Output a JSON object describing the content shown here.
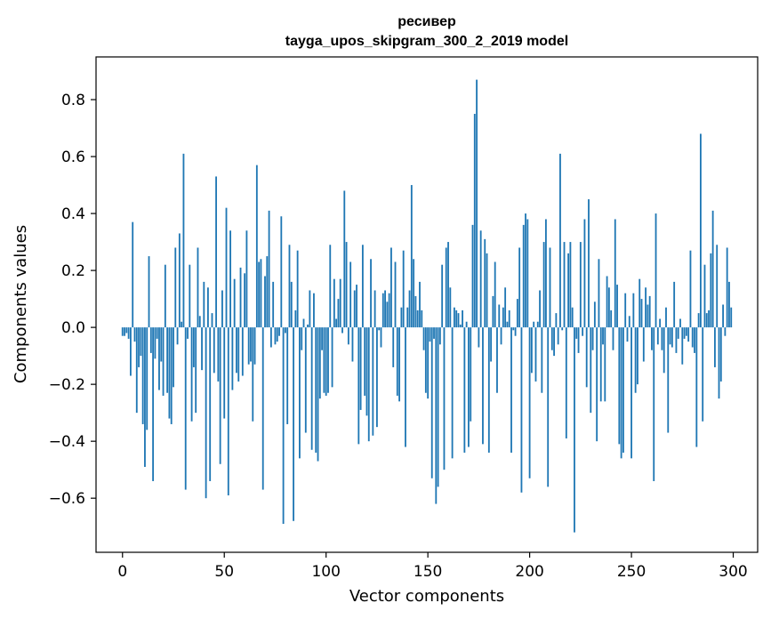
{
  "chart_data": {
    "type": "bar",
    "title": "ресивер",
    "subtitle": "tayga_upos_skipgram_300_2_2019 model",
    "xlabel": "Vector components",
    "ylabel": "Components values",
    "xlim": [
      -13,
      312
    ],
    "ylim": [
      -0.79,
      0.95
    ],
    "xticks": [
      0,
      50,
      100,
      150,
      200,
      250,
      300
    ],
    "xtick_labels": [
      "0",
      "50",
      "100",
      "150",
      "200",
      "250",
      "300"
    ],
    "yticks": [
      -0.6,
      -0.4,
      -0.2,
      0.0,
      0.2,
      0.4,
      0.6,
      0.8
    ],
    "ytick_labels": [
      "−0.6",
      "−0.4",
      "−0.2",
      "0.0",
      "0.2",
      "0.4",
      "0.6",
      "0.8"
    ],
    "bar_color": "#1f77b4",
    "grid": false,
    "x": [
      0,
      1,
      2,
      3,
      4,
      5,
      6,
      7,
      8,
      9,
      10,
      11,
      12,
      13,
      14,
      15,
      16,
      17,
      18,
      19,
      20,
      21,
      22,
      23,
      24,
      25,
      26,
      27,
      28,
      29,
      30,
      31,
      32,
      33,
      34,
      35,
      36,
      37,
      38,
      39,
      40,
      41,
      42,
      43,
      44,
      45,
      46,
      47,
      48,
      49,
      50,
      51,
      52,
      53,
      54,
      55,
      56,
      57,
      58,
      59,
      60,
      61,
      62,
      63,
      64,
      65,
      66,
      67,
      68,
      69,
      70,
      71,
      72,
      73,
      74,
      75,
      76,
      77,
      78,
      79,
      80,
      81,
      82,
      83,
      84,
      85,
      86,
      87,
      88,
      89,
      90,
      91,
      92,
      93,
      94,
      95,
      96,
      97,
      98,
      99,
      100,
      101,
      102,
      103,
      104,
      105,
      106,
      107,
      108,
      109,
      110,
      111,
      112,
      113,
      114,
      115,
      116,
      117,
      118,
      119,
      120,
      121,
      122,
      123,
      124,
      125,
      126,
      127,
      128,
      129,
      130,
      131,
      132,
      133,
      134,
      135,
      136,
      137,
      138,
      139,
      140,
      141,
      142,
      143,
      144,
      145,
      146,
      147,
      148,
      149,
      150,
      151,
      152,
      153,
      154,
      155,
      156,
      157,
      158,
      159,
      160,
      161,
      162,
      163,
      164,
      165,
      166,
      167,
      168,
      169,
      170,
      171,
      172,
      173,
      174,
      175,
      176,
      177,
      178,
      179,
      180,
      181,
      182,
      183,
      184,
      185,
      186,
      187,
      188,
      189,
      190,
      191,
      192,
      193,
      194,
      195,
      196,
      197,
      198,
      199,
      200,
      201,
      202,
      203,
      204,
      205,
      206,
      207,
      208,
      209,
      210,
      211,
      212,
      213,
      214,
      215,
      216,
      217,
      218,
      219,
      220,
      221,
      222,
      223,
      224,
      225,
      226,
      227,
      228,
      229,
      230,
      231,
      232,
      233,
      234,
      235,
      236,
      237,
      238,
      239,
      240,
      241,
      242,
      243,
      244,
      245,
      246,
      247,
      248,
      249,
      250,
      251,
      252,
      253,
      254,
      255,
      256,
      257,
      258,
      259,
      260,
      261,
      262,
      263,
      264,
      265,
      266,
      267,
      268,
      269,
      270,
      271,
      272,
      273,
      274,
      275,
      276,
      277,
      278,
      279,
      280,
      281,
      282,
      283,
      284,
      285,
      286,
      287,
      288,
      289,
      290,
      291,
      292,
      293,
      294,
      295,
      296,
      297,
      298,
      299
    ],
    "values": [
      -0.03,
      -0.03,
      -0.02,
      -0.04,
      -0.17,
      0.37,
      -0.05,
      -0.3,
      -0.14,
      -0.1,
      -0.34,
      -0.49,
      -0.36,
      0.25,
      -0.09,
      -0.54,
      -0.11,
      -0.04,
      -0.22,
      -0.12,
      -0.24,
      0.22,
      -0.23,
      -0.32,
      -0.34,
      -0.21,
      0.28,
      -0.06,
      0.33,
      0.02,
      0.61,
      -0.57,
      -0.04,
      0.22,
      -0.33,
      -0.14,
      -0.3,
      0.28,
      0.04,
      -0.15,
      0.16,
      -0.6,
      0.14,
      -0.54,
      0.05,
      -0.16,
      0.53,
      -0.19,
      -0.48,
      0.13,
      -0.32,
      0.42,
      -0.59,
      0.34,
      -0.22,
      0.17,
      -0.16,
      -0.19,
      0.21,
      -0.17,
      0.19,
      0.34,
      -0.13,
      -0.12,
      -0.33,
      -0.13,
      0.57,
      0.23,
      0.24,
      -0.57,
      0.18,
      0.25,
      0.41,
      -0.07,
      0.16,
      -0.06,
      -0.05,
      -0.03,
      0.39,
      -0.69,
      -0.02,
      -0.34,
      0.29,
      0.16,
      -0.68,
      0.06,
      0.27,
      -0.46,
      -0.08,
      0.03,
      -0.37,
      0.01,
      0.13,
      -0.43,
      0.12,
      -0.44,
      -0.47,
      -0.25,
      -0.08,
      -0.23,
      -0.24,
      -0.23,
      0.29,
      -0.21,
      0.17,
      0.03,
      0.1,
      0.17,
      -0.02,
      0.48,
      0.3,
      -0.06,
      0.23,
      -0.12,
      0.13,
      0.15,
      -0.41,
      -0.29,
      0.29,
      -0.24,
      -0.31,
      -0.4,
      0.24,
      -0.38,
      0.13,
      -0.35,
      -0.01,
      -0.07,
      0.12,
      0.13,
      0.09,
      0.12,
      0.28,
      -0.14,
      0.23,
      -0.24,
      -0.26,
      0.07,
      0.27,
      -0.42,
      0.07,
      0.13,
      0.5,
      0.24,
      0.11,
      0.06,
      0.16,
      0.06,
      -0.08,
      -0.23,
      -0.25,
      -0.05,
      -0.53,
      -0.04,
      -0.62,
      -0.56,
      -0.06,
      0.22,
      -0.5,
      0.28,
      0.3,
      0.14,
      -0.46,
      0.07,
      0.06,
      0.05,
      0.01,
      0.06,
      -0.44,
      0.02,
      -0.42,
      -0.33,
      0.36,
      0.75,
      0.87,
      -0.07,
      0.34,
      -0.41,
      0.31,
      0.26,
      -0.44,
      -0.12,
      0.11,
      0.23,
      -0.23,
      0.08,
      -0.06,
      0.07,
      0.14,
      0.02,
      0.06,
      -0.44,
      -0.01,
      -0.03,
      0.1,
      0.28,
      -0.58,
      0.36,
      0.4,
      0.38,
      -0.53,
      -0.16,
      0.02,
      -0.19,
      0.02,
      0.13,
      -0.23,
      0.3,
      0.38,
      -0.56,
      0.28,
      -0.08,
      -0.1,
      0.05,
      -0.06,
      0.61,
      -0.01,
      0.3,
      -0.39,
      0.26,
      0.3,
      0.07,
      -0.72,
      -0.04,
      -0.09,
      0.3,
      -0.03,
      0.38,
      -0.21,
      0.45,
      -0.3,
      -0.08,
      0.09,
      -0.4,
      0.24,
      -0.26,
      -0.06,
      -0.26,
      0.18,
      0.14,
      0.06,
      -0.08,
      0.38,
      0.15,
      -0.41,
      -0.46,
      -0.44,
      0.12,
      -0.05,
      0.04,
      -0.46,
      0.12,
      -0.23,
      -0.2,
      0.17,
      0.1,
      -0.12,
      0.14,
      0.08,
      0.11,
      -0.08,
      -0.54,
      0.4,
      -0.06,
      0.03,
      -0.08,
      -0.16,
      0.07,
      -0.37,
      -0.06,
      -0.07,
      0.16,
      -0.09,
      -0.04,
      0.03,
      -0.13,
      -0.04,
      -0.03,
      -0.05,
      0.27,
      -0.07,
      -0.09,
      -0.42,
      0.05,
      0.68,
      -0.33,
      0.22,
      0.05,
      0.06,
      0.26,
      0.41,
      -0.14,
      0.29,
      -0.25,
      -0.19,
      0.08,
      -0.03,
      0.28,
      0.16,
      0.07
    ]
  }
}
